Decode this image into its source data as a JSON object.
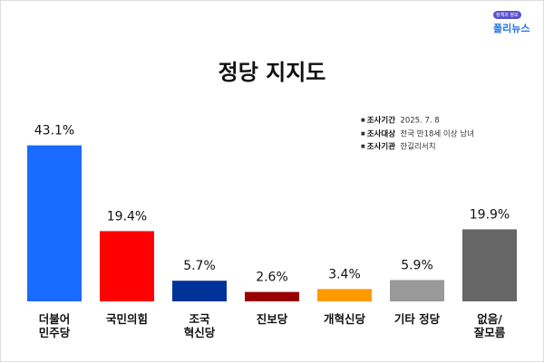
{
  "logo": {
    "sub": "정책과 정보",
    "main": "폴리뉴스"
  },
  "info": [
    {
      "label": "조사기간",
      "value": "2025. 7. 8"
    },
    {
      "label": "조사대상",
      "value": "전국 만18세 이상 남녀"
    },
    {
      "label": "조사기관",
      "value": "한길리서치"
    }
  ],
  "chart_data": {
    "type": "bar",
    "title": "정당 지지도",
    "categories": [
      "더불어\n민주당",
      "국민의힘",
      "조국\n혁신당",
      "진보당",
      "개혁신당",
      "기타 정당",
      "없음/\n잘모름"
    ],
    "values": [
      43.1,
      19.4,
      5.7,
      2.6,
      3.4,
      5.9,
      19.9
    ],
    "data_labels": [
      "43.1%",
      "19.4%",
      "5.7%",
      "2.6%",
      "3.4%",
      "5.9%",
      "19.9%"
    ],
    "colors": [
      "#1a6bff",
      "#ff0000",
      "#003399",
      "#990000",
      "#ff9900",
      "#999999",
      "#666666"
    ],
    "grid": false,
    "legend": "none"
  }
}
